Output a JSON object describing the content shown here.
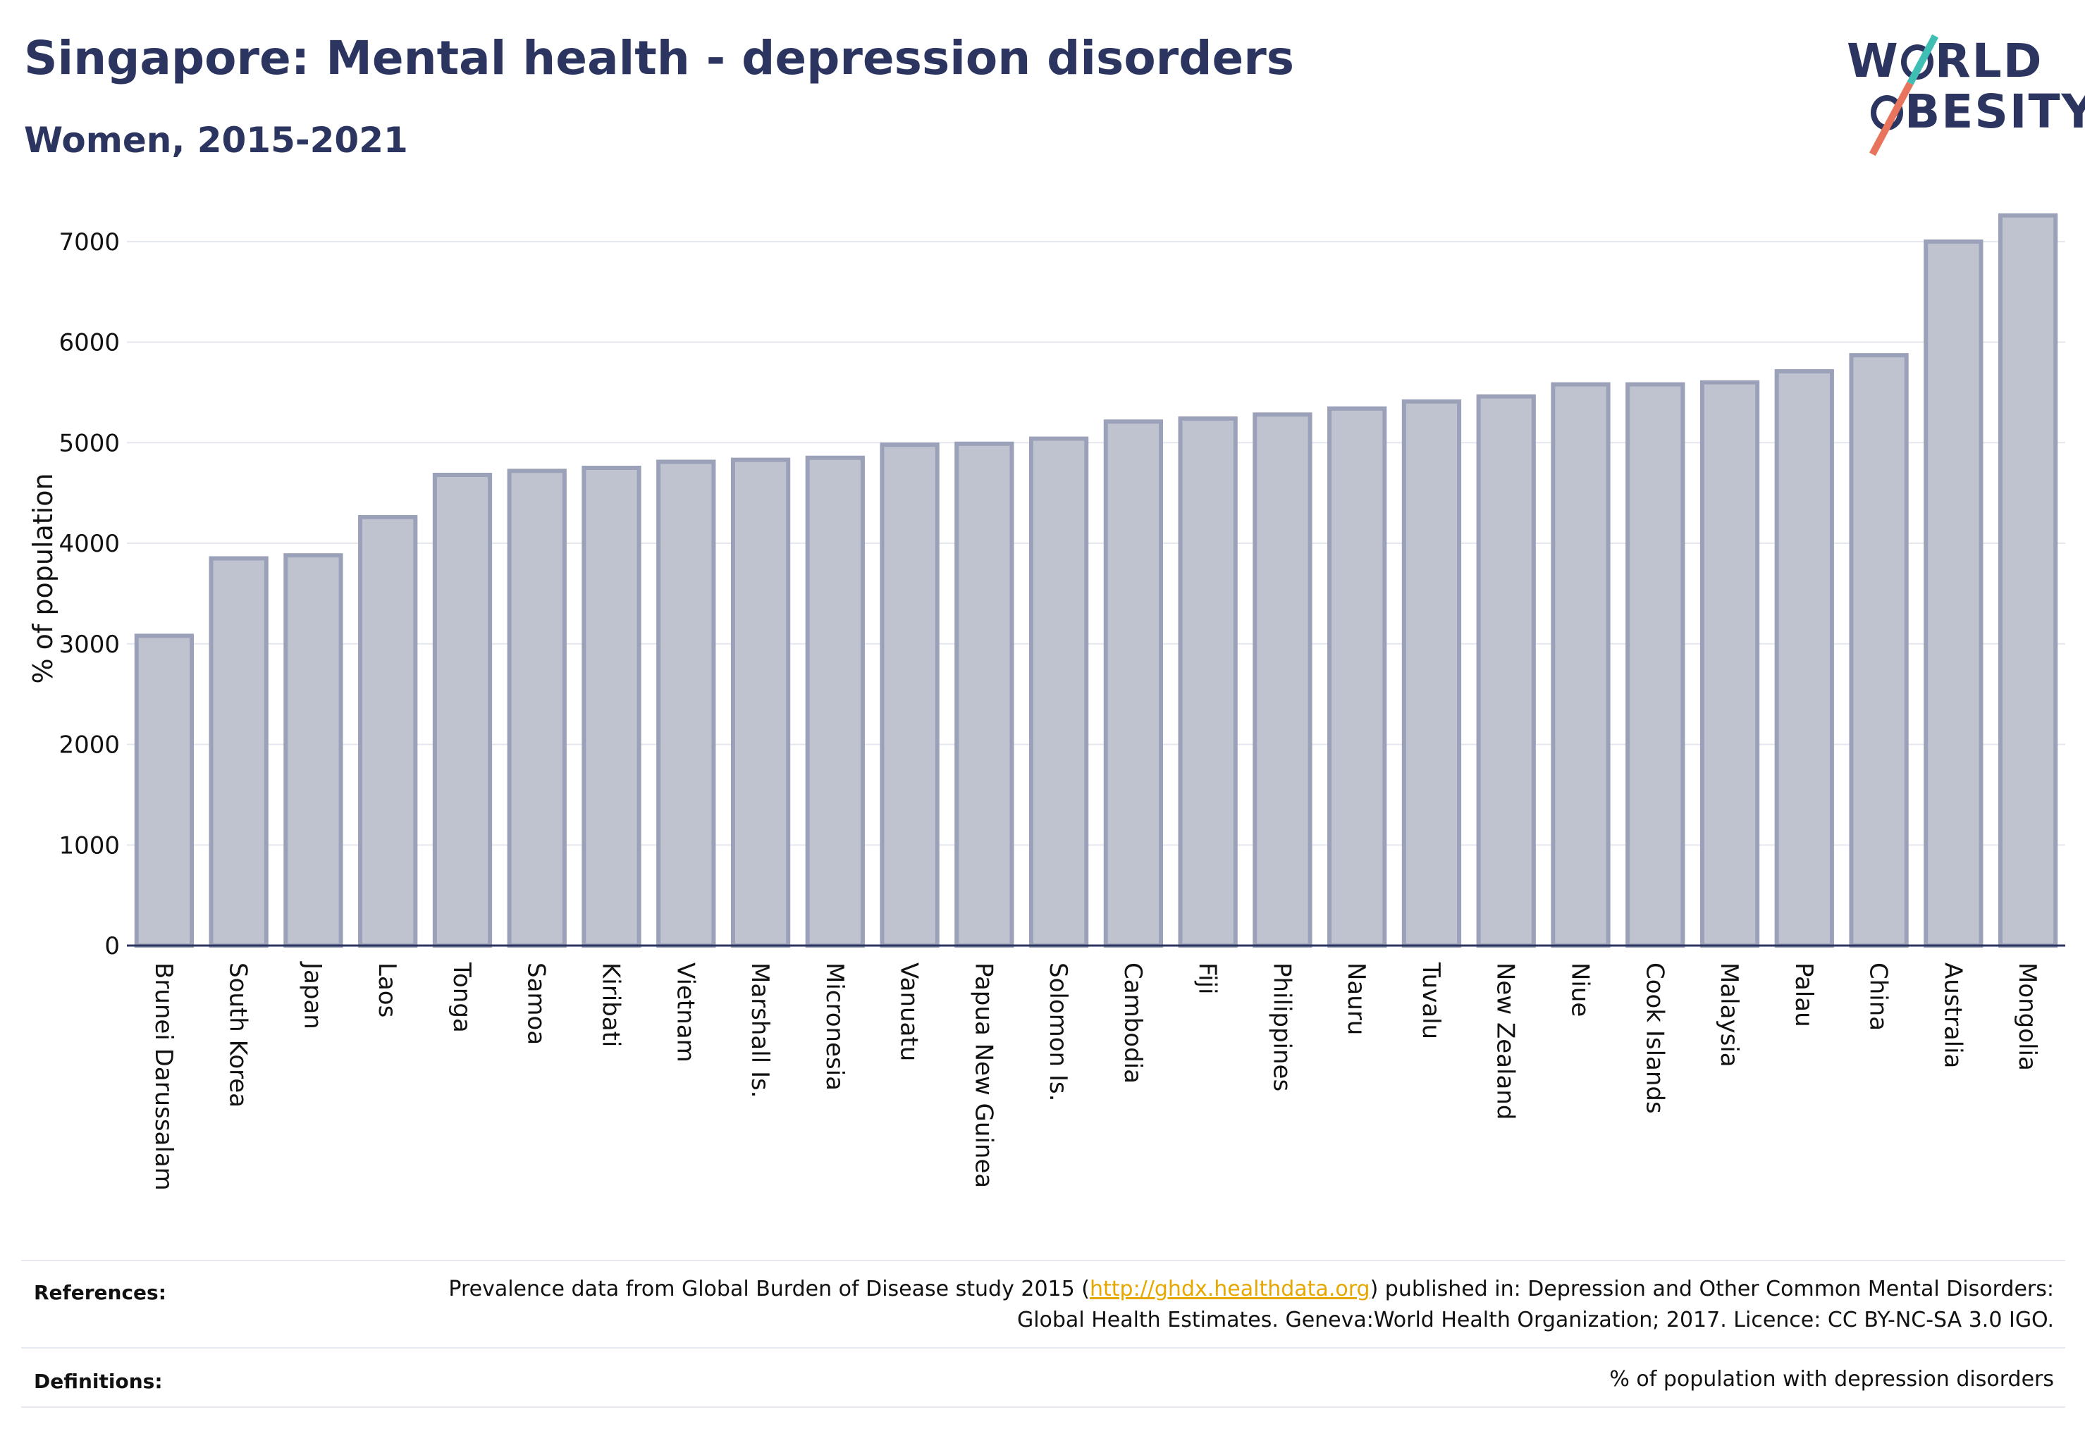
{
  "header": {
    "title": "Singapore: Mental health - depression disorders",
    "subtitle": "Women, 2015-2021"
  },
  "logo": {
    "line1_a": "W",
    "line1_b": "RLD",
    "line2_b": "BESITY",
    "colors": {
      "text": "#2b3560",
      "slash_top": "#3fbfb4",
      "slash_bottom": "#e8745e"
    }
  },
  "chart_data": {
    "type": "bar",
    "categories": [
      "Brunei Darussalam",
      "South Korea",
      "Japan",
      "Laos",
      "Tonga",
      "Samoa",
      "Kiribati",
      "Vietnam",
      "Marshall Is.",
      "Micronesia",
      "Vanuatu",
      "Papua New Guinea",
      "Solomon Is.",
      "Cambodia",
      "Fiji",
      "Philippines",
      "Nauru",
      "Tuvalu",
      "New Zealand",
      "Niue",
      "Cook Islands",
      "Malaysia",
      "Palau",
      "China",
      "Australia",
      "Mongolia"
    ],
    "values": [
      3080,
      3850,
      3880,
      4260,
      4680,
      4720,
      4750,
      4810,
      4830,
      4850,
      4980,
      4990,
      5040,
      5210,
      5240,
      5280,
      5340,
      5410,
      5460,
      5580,
      5580,
      5600,
      5710,
      5870,
      7000,
      7260
    ],
    "ylabel": "% of population",
    "ylim": [
      0,
      7300
    ],
    "yticks": [
      0,
      1000,
      2000,
      3000,
      4000,
      5000,
      6000,
      7000
    ],
    "grid": true,
    "colors": {
      "bar_fill": "#bfc3d0",
      "bar_stroke": "#9ba1b8",
      "axis": "#2b3560",
      "grid": "#e5e7ef"
    }
  },
  "footer": {
    "references_label": "References:",
    "references_text_before": "Prevalence data from Global Burden of Disease study 2015 (",
    "references_link": "http://ghdx.healthdata.org",
    "references_text_after": ") published in: Depression and Other Common Mental Disorders: Global Health Estimates. Geneva:World Health Organization; 2017. Licence: CC BY-NC-SA 3.0 IGO.",
    "definitions_label": "Definitions:",
    "definitions_text": "% of population with depression disorders"
  }
}
